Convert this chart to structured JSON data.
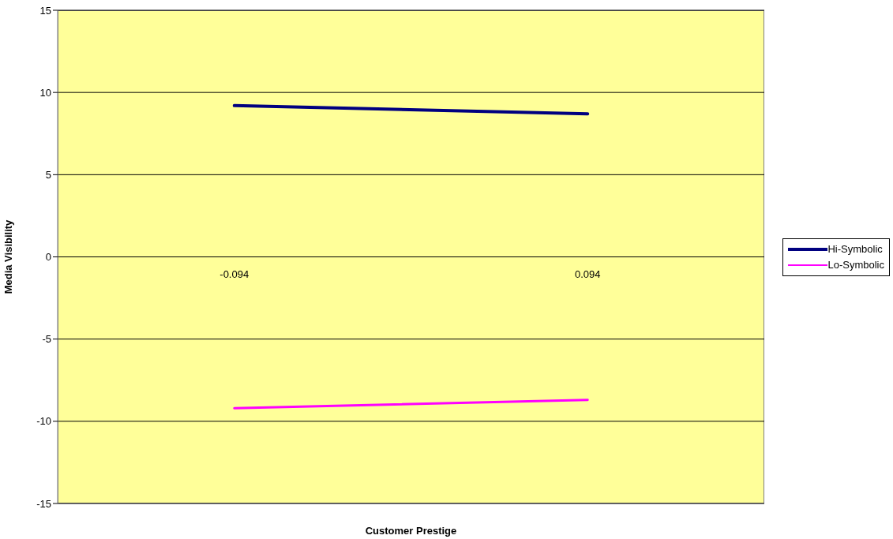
{
  "chart_data": {
    "type": "line",
    "xlabel": "Customer Prestige",
    "ylabel": "Media Visibility",
    "categories": [
      "-0.094",
      "0.094"
    ],
    "series": [
      {
        "name": "Hi-Symbolic",
        "color": "#000080",
        "values": [
          9.2,
          8.7
        ]
      },
      {
        "name": "Lo-Symbolic",
        "color": "#ff00ff",
        "values": [
          -9.2,
          -8.7
        ]
      }
    ],
    "ylim": [
      -15,
      15
    ],
    "yticks": [
      -15,
      -10,
      -5,
      0,
      5,
      10,
      15
    ],
    "grid": "y",
    "legend": "right",
    "marker": "none",
    "line_style": "solid"
  }
}
